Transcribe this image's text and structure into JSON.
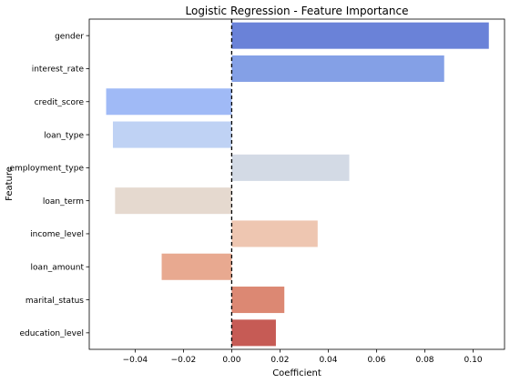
{
  "chart_data": {
    "type": "bar",
    "orientation": "horizontal",
    "title": "Logistic Regression - Feature Importance",
    "xlabel": "Coefficient",
    "ylabel": "Feature",
    "xlim": [
      -0.059,
      0.113
    ],
    "xticks": [
      -0.04,
      -0.02,
      0.0,
      0.02,
      0.04,
      0.06,
      0.08,
      0.1
    ],
    "xtick_labels": [
      "−0.04",
      "−0.02",
      "0.00",
      "0.02",
      "0.04",
      "0.06",
      "0.08",
      "0.10"
    ],
    "reference_line": {
      "x": 0,
      "style": "dashed",
      "color": "#000000"
    },
    "grid": false,
    "categories": [
      "gender",
      "interest_rate",
      "credit_score",
      "loan_type",
      "employment_type",
      "loan_term",
      "income_level",
      "loan_amount",
      "marital_status",
      "education_level"
    ],
    "values": [
      0.1065,
      0.088,
      -0.052,
      -0.0492,
      0.0487,
      -0.0483,
      0.0356,
      -0.029,
      0.0218,
      0.0183
    ],
    "colors": [
      "#6a82d8",
      "#84a0e6",
      "#a0baf6",
      "#bfd2f4",
      "#d3dae5",
      "#e5d9cf",
      "#eec6b1",
      "#e8a990",
      "#dc8873",
      "#c65b55"
    ]
  }
}
